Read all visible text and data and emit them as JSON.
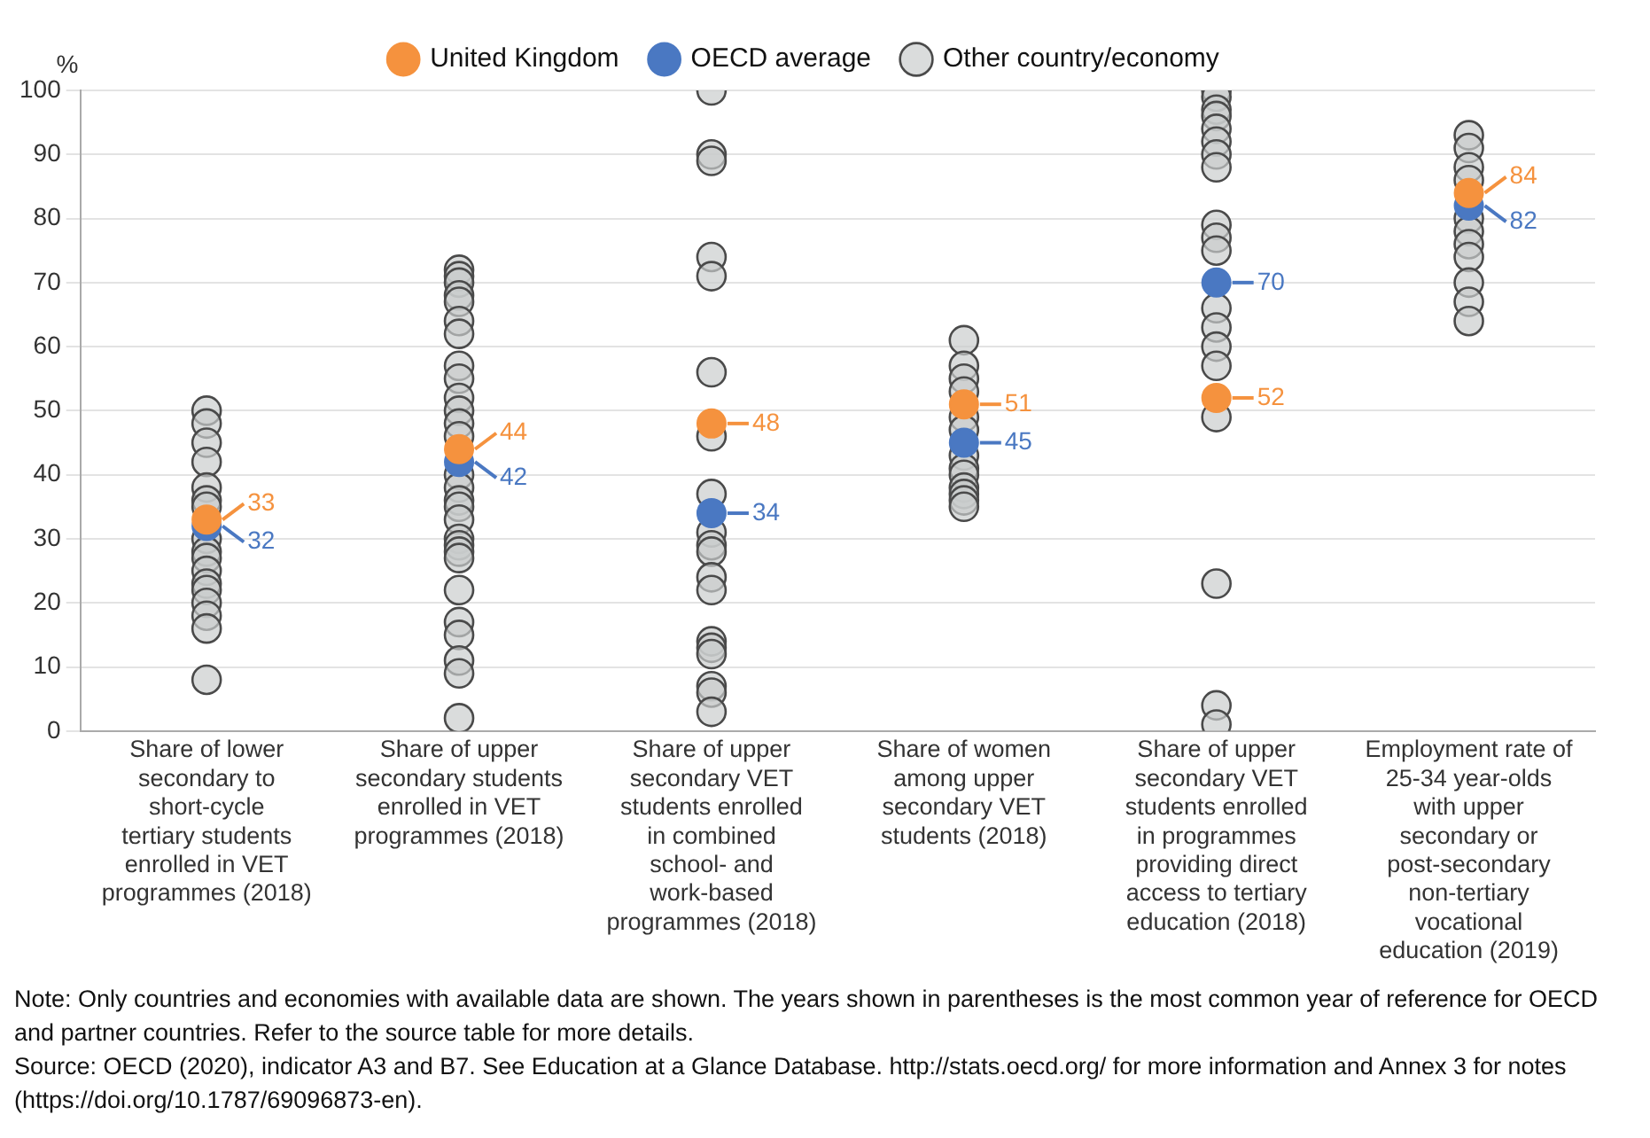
{
  "chart_data": {
    "type": "scatter",
    "categories": [
      "Share of lower secondary to short-cycle tertiary students enrolled in VET programmes (2018)",
      "Share of upper secondary students enrolled in VET programmes (2018)",
      "Share of upper secondary VET students enrolled in combined school- and work-based programmes (2018)",
      "Share of women among upper secondary VET students (2018)",
      "Share of upper secondary VET students enrolled in programmes providing direct access to tertiary education (2018)",
      "Employment rate of 25-34 year-olds with upper secondary or post-secondary non-tertiary vocational education (2019)"
    ],
    "ylabel": "%",
    "ylim": [
      0,
      100
    ],
    "yticks": [
      0,
      10,
      20,
      30,
      40,
      50,
      60,
      70,
      80,
      90,
      100
    ],
    "grid": "y",
    "legend": "top",
    "marker": "circle",
    "series": [
      {
        "name": "United Kingdom",
        "color": "#f5923e",
        "x": [
          "Share of lower secondary to short-cycle tertiary students enrolled in VET programmes (2018)",
          "Share of upper secondary students enrolled in VET programmes (2018)",
          "Share of upper secondary VET students enrolled in combined school- and work-based programmes (2018)",
          "Share of women among upper secondary VET students (2018)",
          "Share of upper secondary VET students enrolled in programmes providing direct access to tertiary education (2018)",
          "Employment rate of 25-34 year-olds with upper secondary or post-secondary non-tertiary vocational education (2019)"
        ],
        "values": [
          33,
          44,
          48,
          51,
          52,
          84
        ],
        "value_labels": [
          "33",
          "44",
          "48",
          "51",
          "52",
          "84"
        ]
      },
      {
        "name": "OECD average",
        "color": "#4a78c2",
        "x": [
          "Share of lower secondary to short-cycle tertiary students enrolled in VET programmes (2018)",
          "Share of upper secondary students enrolled in VET programmes (2018)",
          "Share of upper secondary VET students enrolled in combined school- and work-based programmes (2018)",
          "Share of women among upper secondary VET students (2018)",
          "Share of upper secondary VET students enrolled in programmes providing direct access to tertiary education (2018)",
          "Employment rate of 25-34 year-olds with upper secondary or post-secondary non-tertiary vocational education (2019)"
        ],
        "values": [
          32,
          42,
          34,
          45,
          70,
          82
        ],
        "value_labels": [
          "32",
          "42",
          "34",
          "45",
          "70",
          "82"
        ]
      },
      {
        "name": "Other country/economy",
        "color": "#c9cdcd",
        "x": [
          "Share of lower secondary to short-cycle tertiary students enrolled in VET programmes (2018)",
          "Share of lower secondary to short-cycle tertiary students enrolled in VET programmes (2018)",
          "Share of lower secondary to short-cycle tertiary students enrolled in VET programmes (2018)",
          "Share of lower secondary to short-cycle tertiary students enrolled in VET programmes (2018)",
          "Share of lower secondary to short-cycle tertiary students enrolled in VET programmes (2018)",
          "Share of lower secondary to short-cycle tertiary students enrolled in VET programmes (2018)",
          "Share of lower secondary to short-cycle tertiary students enrolled in VET programmes (2018)",
          "Share of lower secondary to short-cycle tertiary students enrolled in VET programmes (2018)",
          "Share of lower secondary to short-cycle tertiary students enrolled in VET programmes (2018)",
          "Share of lower secondary to short-cycle tertiary students enrolled in VET programmes (2018)",
          "Share of lower secondary to short-cycle tertiary students enrolled in VET programmes (2018)",
          "Share of lower secondary to short-cycle tertiary students enrolled in VET programmes (2018)",
          "Share of lower secondary to short-cycle tertiary students enrolled in VET programmes (2018)",
          "Share of lower secondary to short-cycle tertiary students enrolled in VET programmes (2018)",
          "Share of lower secondary to short-cycle tertiary students enrolled in VET programmes (2018)",
          "Share of lower secondary to short-cycle tertiary students enrolled in VET programmes (2018)",
          "Share of lower secondary to short-cycle tertiary students enrolled in VET programmes (2018)",
          "Share of upper secondary students enrolled in VET programmes (2018)",
          "Share of upper secondary students enrolled in VET programmes (2018)",
          "Share of upper secondary students enrolled in VET programmes (2018)",
          "Share of upper secondary students enrolled in VET programmes (2018)",
          "Share of upper secondary students enrolled in VET programmes (2018)",
          "Share of upper secondary students enrolled in VET programmes (2018)",
          "Share of upper secondary students enrolled in VET programmes (2018)",
          "Share of upper secondary students enrolled in VET programmes (2018)",
          "Share of upper secondary students enrolled in VET programmes (2018)",
          "Share of upper secondary students enrolled in VET programmes (2018)",
          "Share of upper secondary students enrolled in VET programmes (2018)",
          "Share of upper secondary students enrolled in VET programmes (2018)",
          "Share of upper secondary students enrolled in VET programmes (2018)",
          "Share of upper secondary students enrolled in VET programmes (2018)",
          "Share of upper secondary students enrolled in VET programmes (2018)",
          "Share of upper secondary students enrolled in VET programmes (2018)",
          "Share of upper secondary students enrolled in VET programmes (2018)",
          "Share of upper secondary students enrolled in VET programmes (2018)",
          "Share of upper secondary students enrolled in VET programmes (2018)",
          "Share of upper secondary students enrolled in VET programmes (2018)",
          "Share of upper secondary students enrolled in VET programmes (2018)",
          "Share of upper secondary students enrolled in VET programmes (2018)",
          "Share of upper secondary students enrolled in VET programmes (2018)",
          "Share of upper secondary students enrolled in VET programmes (2018)",
          "Share of upper secondary students enrolled in VET programmes (2018)",
          "Share of upper secondary students enrolled in VET programmes (2018)",
          "Share of upper secondary students enrolled in VET programmes (2018)",
          "Share of upper secondary students enrolled in VET programmes (2018)",
          "Share of upper secondary students enrolled in VET programmes (2018)",
          "Share of upper secondary VET students enrolled in combined school- and work-based programmes (2018)",
          "Share of upper secondary VET students enrolled in combined school- and work-based programmes (2018)",
          "Share of upper secondary VET students enrolled in combined school- and work-based programmes (2018)",
          "Share of upper secondary VET students enrolled in combined school- and work-based programmes (2018)",
          "Share of upper secondary VET students enrolled in combined school- and work-based programmes (2018)",
          "Share of upper secondary VET students enrolled in combined school- and work-based programmes (2018)",
          "Share of upper secondary VET students enrolled in combined school- and work-based programmes (2018)",
          "Share of upper secondary VET students enrolled in combined school- and work-based programmes (2018)",
          "Share of upper secondary VET students enrolled in combined school- and work-based programmes (2018)",
          "Share of upper secondary VET students enrolled in combined school- and work-based programmes (2018)",
          "Share of upper secondary VET students enrolled in combined school- and work-based programmes (2018)",
          "Share of upper secondary VET students enrolled in combined school- and work-based programmes (2018)",
          "Share of upper secondary VET students enrolled in combined school- and work-based programmes (2018)",
          "Share of upper secondary VET students enrolled in combined school- and work-based programmes (2018)",
          "Share of upper secondary VET students enrolled in combined school- and work-based programmes (2018)",
          "Share of upper secondary VET students enrolled in combined school- and work-based programmes (2018)",
          "Share of upper secondary VET students enrolled in combined school- and work-based programmes (2018)",
          "Share of upper secondary VET students enrolled in combined school- and work-based programmes (2018)",
          "Share of upper secondary VET students enrolled in combined school- and work-based programmes (2018)",
          "Share of women among upper secondary VET students (2018)",
          "Share of women among upper secondary VET students (2018)",
          "Share of women among upper secondary VET students (2018)",
          "Share of women among upper secondary VET students (2018)",
          "Share of women among upper secondary VET students (2018)",
          "Share of women among upper secondary VET students (2018)",
          "Share of women among upper secondary VET students (2018)",
          "Share of women among upper secondary VET students (2018)",
          "Share of women among upper secondary VET students (2018)",
          "Share of women among upper secondary VET students (2018)",
          "Share of women among upper secondary VET students (2018)",
          "Share of women among upper secondary VET students (2018)",
          "Share of women among upper secondary VET students (2018)",
          "Share of upper secondary VET students enrolled in programmes providing direct access to tertiary education (2018)",
          "Share of upper secondary VET students enrolled in programmes providing direct access to tertiary education (2018)",
          "Share of upper secondary VET students enrolled in programmes providing direct access to tertiary education (2018)",
          "Share of upper secondary VET students enrolled in programmes providing direct access to tertiary education (2018)",
          "Share of upper secondary VET students enrolled in programmes providing direct access to tertiary education (2018)",
          "Share of upper secondary VET students enrolled in programmes providing direct access to tertiary education (2018)",
          "Share of upper secondary VET students enrolled in programmes providing direct access to tertiary education (2018)",
          "Share of upper secondary VET students enrolled in programmes providing direct access to tertiary education (2018)",
          "Share of upper secondary VET students enrolled in programmes providing direct access to tertiary education (2018)",
          "Share of upper secondary VET students enrolled in programmes providing direct access to tertiary education (2018)",
          "Share of upper secondary VET students enrolled in programmes providing direct access to tertiary education (2018)",
          "Share of upper secondary VET students enrolled in programmes providing direct access to tertiary education (2018)",
          "Share of upper secondary VET students enrolled in programmes providing direct access to tertiary education (2018)",
          "Share of upper secondary VET students enrolled in programmes providing direct access to tertiary education (2018)",
          "Share of upper secondary VET students enrolled in programmes providing direct access to tertiary education (2018)",
          "Share of upper secondary VET students enrolled in programmes providing direct access to tertiary education (2018)",
          "Share of upper secondary VET students enrolled in programmes providing direct access to tertiary education (2018)",
          "Share of upper secondary VET students enrolled in programmes providing direct access to tertiary education (2018)",
          "Share of upper secondary VET students enrolled in programmes providing direct access to tertiary education (2018)",
          "Employment rate of 25-34 year-olds with upper secondary or post-secondary non-tertiary vocational education (2019)",
          "Employment rate of 25-34 year-olds with upper secondary or post-secondary non-tertiary vocational education (2019)",
          "Employment rate of 25-34 year-olds with upper secondary or post-secondary non-tertiary vocational education (2019)",
          "Employment rate of 25-34 year-olds with upper secondary or post-secondary non-tertiary vocational education (2019)",
          "Employment rate of 25-34 year-olds with upper secondary or post-secondary non-tertiary vocational education (2019)",
          "Employment rate of 25-34 year-olds with upper secondary or post-secondary non-tertiary vocational education (2019)",
          "Employment rate of 25-34 year-olds with upper secondary or post-secondary non-tertiary vocational education (2019)",
          "Employment rate of 25-34 year-olds with upper secondary or post-secondary non-tertiary vocational education (2019)",
          "Employment rate of 25-34 year-olds with upper secondary or post-secondary non-tertiary vocational education (2019)",
          "Employment rate of 25-34 year-olds with upper secondary or post-secondary non-tertiary vocational education (2019)",
          "Employment rate of 25-34 year-olds with upper secondary or post-secondary non-tertiary vocational education (2019)"
        ],
        "values": [
          50,
          48,
          45,
          42,
          38,
          36,
          35,
          30,
          28,
          27,
          25,
          23,
          22,
          20,
          18,
          16,
          8,
          72,
          71,
          70,
          68,
          67,
          64,
          62,
          57,
          55,
          52,
          50,
          48,
          46,
          null,
          40,
          38,
          36,
          35,
          33,
          30,
          29,
          28,
          27,
          22,
          17,
          15,
          11,
          9,
          2,
          100,
          90,
          89,
          74,
          71,
          56,
          46,
          37,
          31,
          29,
          28,
          24,
          22,
          14,
          13,
          12,
          7,
          6,
          3,
          61,
          57,
          55,
          53,
          49,
          47,
          43,
          41,
          40,
          38,
          37,
          36,
          35,
          100,
          99,
          97,
          96,
          94,
          92,
          90,
          88,
          79,
          77,
          75,
          66,
          63,
          60,
          57,
          49,
          23,
          4,
          1,
          93,
          91,
          88,
          86,
          80,
          78,
          76,
          74,
          70,
          67,
          64
        ]
      }
    ],
    "annotations": [
      "Note: Only countries and economies with available data are shown. The years shown in parentheses is the most common year of reference for OECD and partner countries. Refer to the source table for more details.",
      "Source: OECD (2020), indicator A3 and B7. See Education at a Glance Database. http://stats.oecd.org/ for more information and Annex 3 for notes (https://doi.org/10.1787/69096873-en)."
    ]
  }
}
